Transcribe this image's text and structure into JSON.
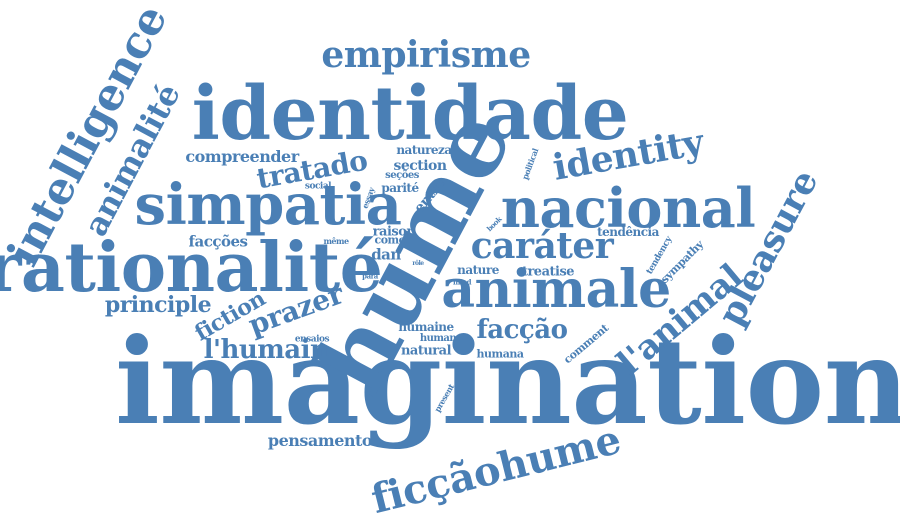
{
  "color": "#4a7fb5",
  "words": [
    "imagination",
    "hume",
    "identidade",
    "rationalité",
    "simpatia",
    "nacional",
    "animale",
    "intelligence",
    "animalité",
    "empirisme",
    "ficçãohume",
    "identity",
    "pleasure",
    "l'animal",
    "caráter",
    "tratado",
    "prazer",
    "l'humain",
    "facção",
    "principle",
    "fiction",
    "compreender",
    "facções",
    "pensamento",
    "natureza",
    "section",
    "seções",
    "parité",
    "social",
    "entre",
    "essay",
    "raison",
    "dan",
    "como",
    "même",
    "tendência",
    "tendency",
    "sympathy",
    "political",
    "book",
    "treatise",
    "nature",
    "mind",
    "rôle",
    "para",
    "humaine",
    "human",
    "natural",
    "humana",
    "ensaios",
    "comment",
    "present"
  ]
}
